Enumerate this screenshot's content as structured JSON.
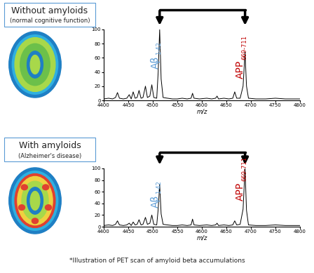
{
  "chart_data": [
    {
      "type": "line",
      "title": "Without amyloids",
      "subtitle": "(normal cognitive function)",
      "x_label": "m/z",
      "color": "#000000",
      "x": [
        4400,
        4410,
        4418,
        4424,
        4428,
        4432,
        4440,
        4447,
        4452,
        4456,
        4460,
        4464,
        4468,
        4472,
        4476,
        4480,
        4485,
        4489,
        4494,
        4498,
        4502,
        4508,
        4511,
        4514,
        4517,
        4521,
        4530,
        4540,
        4550,
        4560,
        4570,
        4578,
        4581,
        4584,
        4595,
        4610,
        4620,
        4628,
        4631,
        4634,
        4645,
        4655,
        4663,
        4667,
        4671,
        4678,
        4684,
        4688,
        4691,
        4695,
        4710,
        4730,
        4750,
        4770,
        4790,
        4800
      ],
      "values": [
        2,
        3,
        2,
        4,
        11,
        3,
        2,
        3,
        8,
        2,
        12,
        3,
        4,
        14,
        3,
        4,
        20,
        4,
        6,
        22,
        4,
        3,
        40,
        100,
        30,
        4,
        3,
        2,
        2,
        3,
        2,
        3,
        10,
        3,
        2,
        3,
        2,
        3,
        6,
        2,
        3,
        2,
        3,
        12,
        3,
        3,
        20,
        68,
        20,
        3,
        2,
        2,
        3,
        2,
        2,
        2
      ],
      "xlim": [
        4400,
        4800
      ],
      "xticks": [
        4400,
        4450,
        4500,
        4550,
        4600,
        4650,
        4700,
        4750,
        4800
      ],
      "ylim": [
        0,
        100
      ],
      "yticks": [
        0,
        20,
        40,
        60,
        80,
        100
      ],
      "annotations": [
        {
          "text": "Aβ",
          "subscript": "1-42",
          "x": 4514,
          "color": "#5b9bd5"
        },
        {
          "text": "APP",
          "subscript": "669-711",
          "x": 4688,
          "color": "#c00000"
        }
      ]
    },
    {
      "type": "line",
      "title": "With amyloids",
      "subtitle": "(Alzheimer's disease)",
      "x_label": "m/z",
      "color": "#000000",
      "x": [
        4400,
        4410,
        4418,
        4424,
        4428,
        4432,
        4440,
        4447,
        4452,
        4456,
        4460,
        4464,
        4468,
        4472,
        4476,
        4480,
        4485,
        4489,
        4494,
        4498,
        4502,
        4508,
        4511,
        4514,
        4517,
        4521,
        4530,
        4540,
        4550,
        4560,
        4570,
        4578,
        4581,
        4584,
        4595,
        4610,
        4620,
        4628,
        4631,
        4634,
        4645,
        4655,
        4663,
        4667,
        4671,
        4678,
        4684,
        4688,
        4691,
        4695,
        4710,
        4730,
        4750,
        4770,
        4790,
        4800
      ],
      "values": [
        2,
        3,
        2,
        4,
        10,
        3,
        2,
        3,
        6,
        2,
        8,
        3,
        4,
        12,
        3,
        4,
        16,
        4,
        6,
        20,
        4,
        3,
        30,
        73,
        22,
        4,
        3,
        2,
        2,
        3,
        2,
        3,
        13,
        3,
        2,
        3,
        2,
        3,
        6,
        2,
        3,
        2,
        3,
        10,
        3,
        4,
        30,
        100,
        28,
        3,
        2,
        2,
        3,
        2,
        2,
        2
      ],
      "xlim": [
        4400,
        4800
      ],
      "xticks": [
        4400,
        4450,
        4500,
        4550,
        4600,
        4650,
        4700,
        4750,
        4800
      ],
      "ylim": [
        0,
        100
      ],
      "yticks": [
        0,
        20,
        40,
        60,
        80,
        100
      ],
      "annotations": [
        {
          "text": "Aβ",
          "subscript": "1-42",
          "x": 4514,
          "color": "#5b9bd5"
        },
        {
          "text": "APP",
          "subscript": "669-711",
          "x": 4688,
          "color": "#c00000"
        }
      ]
    }
  ],
  "footnote": "*Illustration of PET scan of amyloid beta accumulations"
}
